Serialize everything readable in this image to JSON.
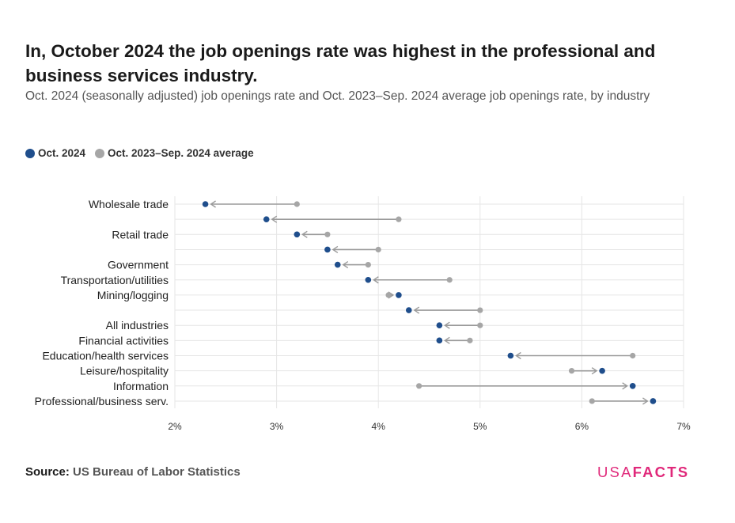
{
  "title": "In, October 2024 the job openings rate was highest in the professional and business services industry.",
  "subtitle": "Oct. 2024 (seasonally adjusted) job openings rate and Oct. 2023–Sep. 2024 average job openings rate, by industry",
  "legend": {
    "current": "Oct. 2024",
    "average": "Oct. 2023–Sep. 2024 average"
  },
  "colors": {
    "current": "#1f4e8c",
    "average": "#a6a6a6",
    "arrow": "#9a9a9a",
    "grid": "#e6e6e6",
    "brand": "#e0287a"
  },
  "source": {
    "label": "Source:",
    "text": "US Bureau of Labor Statistics"
  },
  "logo": {
    "part1": "USA",
    "part2": "FACTS"
  },
  "chart_data": {
    "type": "dumbbell",
    "title": "In, October 2024 the job openings rate was highest in the professional and business services industry.",
    "xlim": [
      0.02,
      0.07
    ],
    "x_ticks": [
      0.02,
      0.03,
      0.04,
      0.05,
      0.06,
      0.07
    ],
    "x_tick_labels": [
      "2%",
      "3%",
      "4%",
      "5%",
      "6%",
      "7%"
    ],
    "grid": true,
    "legend_position": "top-left",
    "categories": [
      "Wholesale trade",
      "",
      "Retail trade",
      "",
      "Government",
      "Transportation/utilities",
      "Mining/logging",
      "",
      "All industries",
      "Financial activities",
      "Education/health services",
      "Leisure/hospitality",
      "Information",
      "Professional/business serv."
    ],
    "series": [
      {
        "name": "Oct. 2024",
        "values": [
          0.023,
          0.029,
          0.032,
          0.035,
          0.036,
          0.039,
          0.042,
          0.043,
          0.046,
          0.046,
          0.053,
          0.062,
          0.065,
          0.067
        ]
      },
      {
        "name": "Oct. 2023–Sep. 2024 average",
        "values": [
          0.032,
          0.042,
          0.035,
          0.04,
          0.039,
          0.047,
          0.041,
          0.05,
          0.05,
          0.049,
          0.065,
          0.059,
          0.044,
          0.061
        ]
      }
    ]
  }
}
